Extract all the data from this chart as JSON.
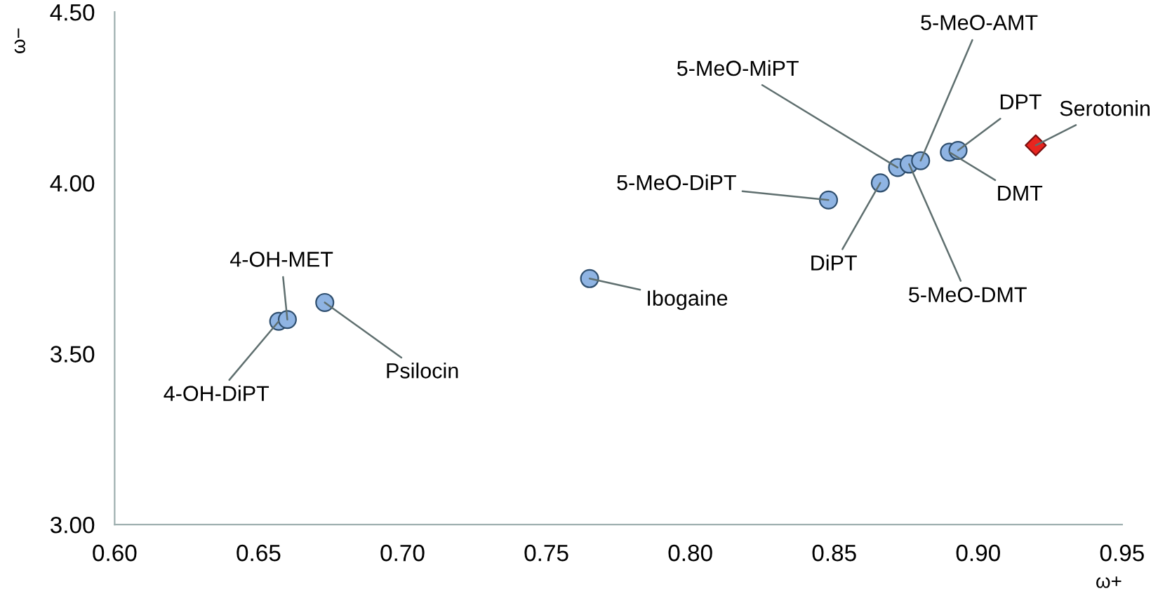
{
  "chart_data": {
    "type": "scatter",
    "xlabel": "ω+",
    "ylabel": "ω−",
    "series": [
      {
        "color": "#8fb4e3",
        "marker": "circle",
        "x": [
          0.657,
          0.66,
          0.673,
          0.765,
          0.848,
          0.866,
          0.872,
          0.876,
          0.88,
          0.89,
          0.893
        ],
        "values": [
          3.595,
          3.6,
          3.65,
          3.72,
          3.95,
          4.0,
          4.045,
          4.055,
          4.065,
          4.09,
          4.095
        ]
      },
      {
        "color": "#e8251f",
        "marker": "diamond",
        "x": [
          0.92
        ],
        "values": [
          4.11
        ]
      }
    ],
    "annotations": [
      {
        "text": "4-OH-DiPT",
        "x": 0.657,
        "y": 3.595
      },
      {
        "text": "4-OH-MET",
        "x": 0.66,
        "y": 3.6
      },
      {
        "text": "Psilocin",
        "x": 0.673,
        "y": 3.65
      },
      {
        "text": "Ibogaine",
        "x": 0.765,
        "y": 3.72
      },
      {
        "text": "5-MeO-DiPT",
        "x": 0.848,
        "y": 3.95
      },
      {
        "text": "DiPT",
        "x": 0.866,
        "y": 4.0
      },
      {
        "text": "5-MeO-MiPT",
        "x": 0.872,
        "y": 4.045
      },
      {
        "text": "5-MeO-AMT",
        "x": 0.88,
        "y": 4.065
      },
      {
        "text": "5-MeO-DMT",
        "x": 0.876,
        "y": 4.055
      },
      {
        "text": "DMT",
        "x": 0.89,
        "y": 4.09
      },
      {
        "text": "DPT",
        "x": 0.893,
        "y": 4.095
      },
      {
        "text": "Serotonin",
        "x": 0.92,
        "y": 4.11
      }
    ],
    "xlim": [
      0.6,
      0.95
    ],
    "ylim": [
      3.0,
      4.5
    ],
    "xticks": [
      {
        "value": 0.6,
        "label": "0.60"
      },
      {
        "value": 0.65,
        "label": "0.65"
      },
      {
        "value": 0.7,
        "label": "0.70"
      },
      {
        "value": 0.75,
        "label": "0.75"
      },
      {
        "value": 0.8,
        "label": "0.80"
      },
      {
        "value": 0.85,
        "label": "0.85"
      },
      {
        "value": 0.9,
        "label": "0.90"
      },
      {
        "value": 0.95,
        "label": "0.95"
      }
    ],
    "yticks": [
      {
        "value": 3.0,
        "label": "3.00"
      },
      {
        "value": 3.5,
        "label": "3.50"
      },
      {
        "value": 4.0,
        "label": "4.00"
      },
      {
        "value": 4.5,
        "label": "4.50"
      }
    ],
    "grid": false,
    "legend": false
  }
}
